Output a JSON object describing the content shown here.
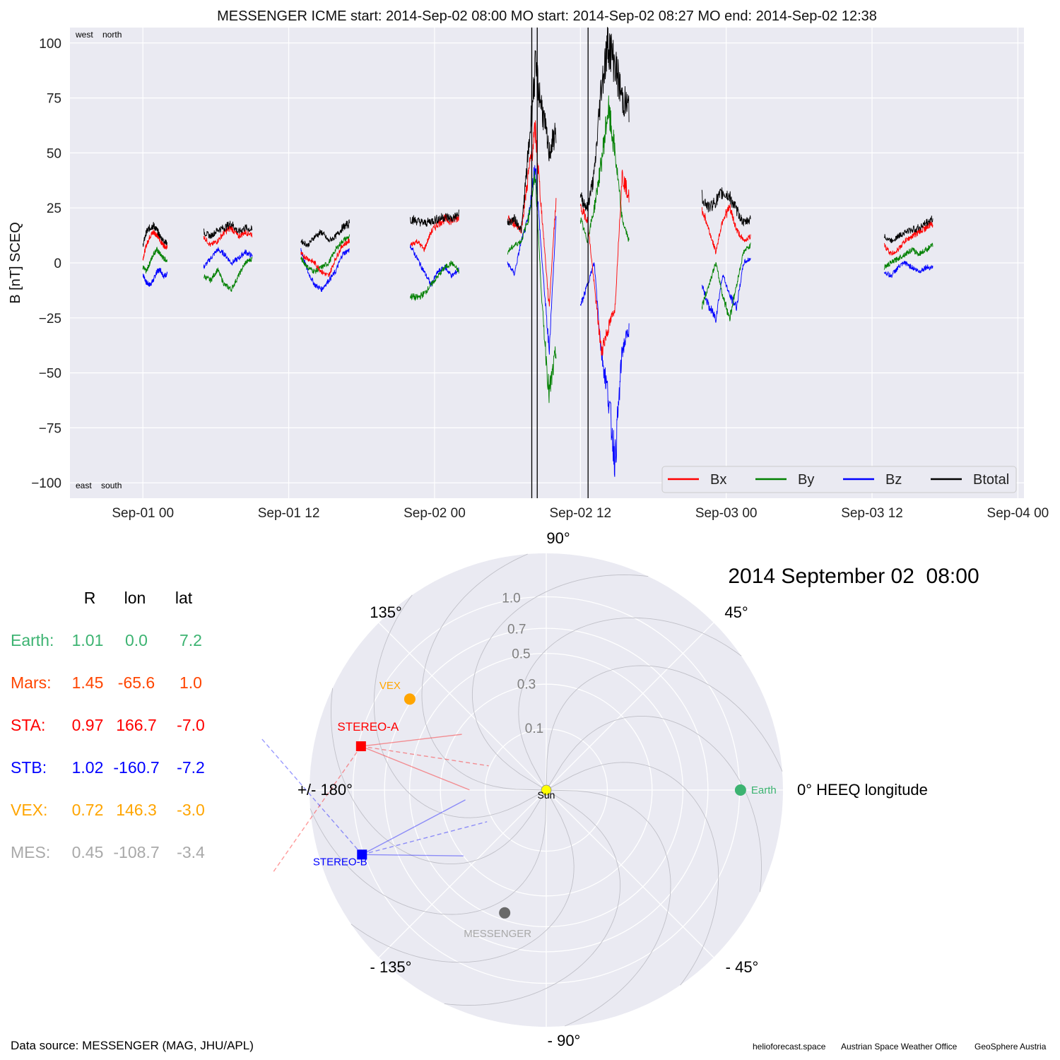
{
  "title": "MESSENGER    ICME start: 2014-Sep-02 08:00   MO start: 2014-Sep-02 08:27   MO end: 2014-Sep-02 12:38",
  "timeseries": {
    "ylabel": "B [nT] SCEQ",
    "corner_top": "west    north",
    "corner_bottom": "east    south"
  },
  "table": {
    "headers": [
      "R",
      "lon",
      "lat"
    ],
    "rows": [
      {
        "name": "Earth:",
        "R": "1.01",
        "lon": "0.0",
        "lat": "7.2",
        "color": "#3cb371"
      },
      {
        "name": "Mars:",
        "R": "1.45",
        "lon": "-65.6",
        "lat": "1.0",
        "color": "#ff4500"
      },
      {
        "name": "STA:",
        "R": "0.97",
        "lon": "166.7",
        "lat": "-7.0",
        "color": "#ff0000"
      },
      {
        "name": "STB:",
        "R": "1.02",
        "lon": "-160.7",
        "lat": "-7.2",
        "color": "#0000ff"
      },
      {
        "name": "VEX:",
        "R": "0.72",
        "lon": "146.3",
        "lat": "-3.0",
        "color": "#ffa500"
      },
      {
        "name": "MES:",
        "R": "0.45",
        "lon": "-108.7",
        "lat": "-3.4",
        "color": "#a9a9a9"
      }
    ]
  },
  "polar": {
    "date": "2014 September 02  08:00",
    "angle_labels": {
      "a90": "90°",
      "a45": "45°",
      "a135": "135°",
      "a0": "0° HEEQ longitude",
      "a180": "+/- 180°",
      "am45": "- 45°",
      "am135": "- 135°",
      "am90": "- 90°"
    },
    "radial_labels": [
      "0.1",
      "0.3",
      "0.5",
      "0.7",
      "1.0"
    ]
  },
  "footer": {
    "source": "Data source: MESSENGER (MAG, JHU/APL)",
    "credit1": "helioforecast.space",
    "credit2": "Austrian Space Weather Office",
    "credit3": "GeoSphere Austria"
  },
  "chart_data": [
    {
      "type": "line",
      "title": "MESSENGER    ICME start: 2014-Sep-02 08:00   MO start: 2014-Sep-02 08:27   MO end: 2014-Sep-02 12:38",
      "ylabel": "B [nT] SCEQ",
      "ylim": [
        -107,
        107
      ],
      "xlim_hours_from_sep01_00": [
        -6,
        72.5
      ],
      "x_ticks": [
        "Sep-01 00",
        "Sep-01 12",
        "Sep-02 00",
        "Sep-02 12",
        "Sep-03 00",
        "Sep-03 12",
        "Sep-04 00"
      ],
      "y_ticks": [
        -100,
        -75,
        -50,
        -25,
        0,
        25,
        50,
        75,
        100
      ],
      "grid": true,
      "legend": {
        "placement": "bottom-right",
        "entries": [
          "Bx",
          "By",
          "Bz",
          "Btotal"
        ]
      },
      "event_lines": [
        "2014-Sep-02 08:00",
        "2014-Sep-02 08:27",
        "2014-Sep-02 12:38"
      ],
      "data_gaps_note": "data present in short orbital segments",
      "segments": [
        {
          "start": "Sep-01 00",
          "end": "Sep-01 02",
          "Bx": [
            2,
            8,
            12,
            14,
            13,
            10,
            8,
            7
          ],
          "By": [
            -2,
            -4,
            0,
            4,
            6,
            4,
            2,
            1
          ],
          "Bz": [
            -5,
            -9,
            -10,
            -8,
            -4,
            -3,
            -6,
            -5
          ],
          "Btotal": [
            8,
            14,
            16,
            17,
            15,
            12,
            10,
            9
          ]
        },
        {
          "start": "Sep-01 05",
          "end": "Sep-01 09",
          "Bx": [
            12,
            8,
            10,
            14,
            16,
            12,
            14,
            13
          ],
          "By": [
            -6,
            -8,
            -3,
            -10,
            -12,
            -6,
            0,
            2
          ],
          "Bz": [
            -2,
            2,
            6,
            4,
            0,
            2,
            5,
            3
          ],
          "Btotal": [
            14,
            12,
            15,
            16,
            18,
            14,
            16,
            15
          ]
        },
        {
          "start": "Sep-01 13",
          "end": "Sep-01 17",
          "Bx": [
            4,
            2,
            0,
            -4,
            -6,
            2,
            8,
            10
          ],
          "By": [
            2,
            -2,
            -4,
            -2,
            0,
            6,
            10,
            12
          ],
          "Bz": [
            6,
            -4,
            -10,
            -12,
            -8,
            -4,
            4,
            6
          ],
          "Btotal": [
            10,
            8,
            12,
            14,
            10,
            12,
            16,
            18
          ]
        },
        {
          "start": "Sep-01 22",
          "end": "Sep-02 02",
          "Bx": [
            8,
            10,
            6,
            14,
            18,
            20,
            19,
            21
          ],
          "By": [
            -15,
            -16,
            -14,
            -10,
            -6,
            -2,
            0,
            -4
          ],
          "Bz": [
            8,
            2,
            -4,
            -10,
            -4,
            -2,
            -6,
            -3
          ],
          "Btotal": [
            20,
            19,
            18,
            19,
            20,
            21,
            20,
            22
          ]
        },
        {
          "start": "Sep-02 06",
          "end": "Sep-02 10",
          "Bx": [
            20,
            18,
            15,
            40,
            60,
            20,
            -20,
            30
          ],
          "By": [
            5,
            8,
            10,
            20,
            40,
            -20,
            -60,
            -40
          ],
          "Bz": [
            0,
            -5,
            10,
            20,
            45,
            0,
            -40,
            20
          ],
          "Btotal": [
            18,
            20,
            15,
            50,
            88,
            70,
            50,
            60
          ]
        },
        {
          "start": "Sep-02 12",
          "end": "Sep-02 16",
          "Bx": [
            25,
            20,
            -10,
            -40,
            -30,
            -20,
            40,
            30
          ],
          "By": [
            20,
            10,
            25,
            45,
            70,
            50,
            20,
            10
          ],
          "Bz": [
            -20,
            -10,
            0,
            -40,
            -60,
            -90,
            -40,
            -30
          ],
          "Btotal": [
            30,
            25,
            40,
            80,
            100,
            90,
            75,
            70
          ]
        },
        {
          "start": "Sep-02 22",
          "end": "Sep-03 02",
          "Bx": [
            25,
            15,
            5,
            20,
            25,
            15,
            10,
            12
          ],
          "By": [
            -20,
            -10,
            0,
            -15,
            -25,
            -10,
            5,
            8
          ],
          "Bz": [
            -10,
            -20,
            -25,
            -5,
            -15,
            -20,
            0,
            2
          ],
          "Btotal": [
            30,
            25,
            28,
            32,
            30,
            24,
            18,
            20
          ]
        },
        {
          "start": "Sep-03 13",
          "end": "Sep-03 17",
          "Bx": [
            8,
            4,
            6,
            10,
            12,
            14,
            16,
            18
          ],
          "By": [
            -2,
            0,
            2,
            4,
            6,
            4,
            6,
            8
          ],
          "Bz": [
            -4,
            -6,
            -2,
            0,
            -2,
            -4,
            -2,
            -2
          ],
          "Btotal": [
            12,
            10,
            12,
            14,
            15,
            16,
            18,
            20
          ]
        }
      ]
    },
    {
      "type": "scatter",
      "title": "2014 September 02  08:00",
      "projection": "polar",
      "theta_reference": "0° HEEQ longitude",
      "r_ticks": [
        0.1,
        0.3,
        0.5,
        0.7,
        1.0
      ],
      "r_max": 1.5,
      "points": [
        {
          "name": "Sun",
          "r": 0.0,
          "lon": 0.0,
          "color": "#ffff00"
        },
        {
          "name": "Earth",
          "r": 1.01,
          "lon": 0.0,
          "color": "#3cb371"
        },
        {
          "name": "STEREO-A",
          "r": 0.97,
          "lon": 166.7,
          "color": "#ff0000",
          "marker": "square"
        },
        {
          "name": "STEREO-B",
          "r": 1.02,
          "lon": -160.7,
          "color": "#0000ff",
          "marker": "square"
        },
        {
          "name": "VEX",
          "r": 0.72,
          "lon": 146.3,
          "color": "#ffa500"
        },
        {
          "name": "MESSENGER",
          "r": 0.45,
          "lon": -108.7,
          "color": "#696969"
        }
      ]
    }
  ]
}
